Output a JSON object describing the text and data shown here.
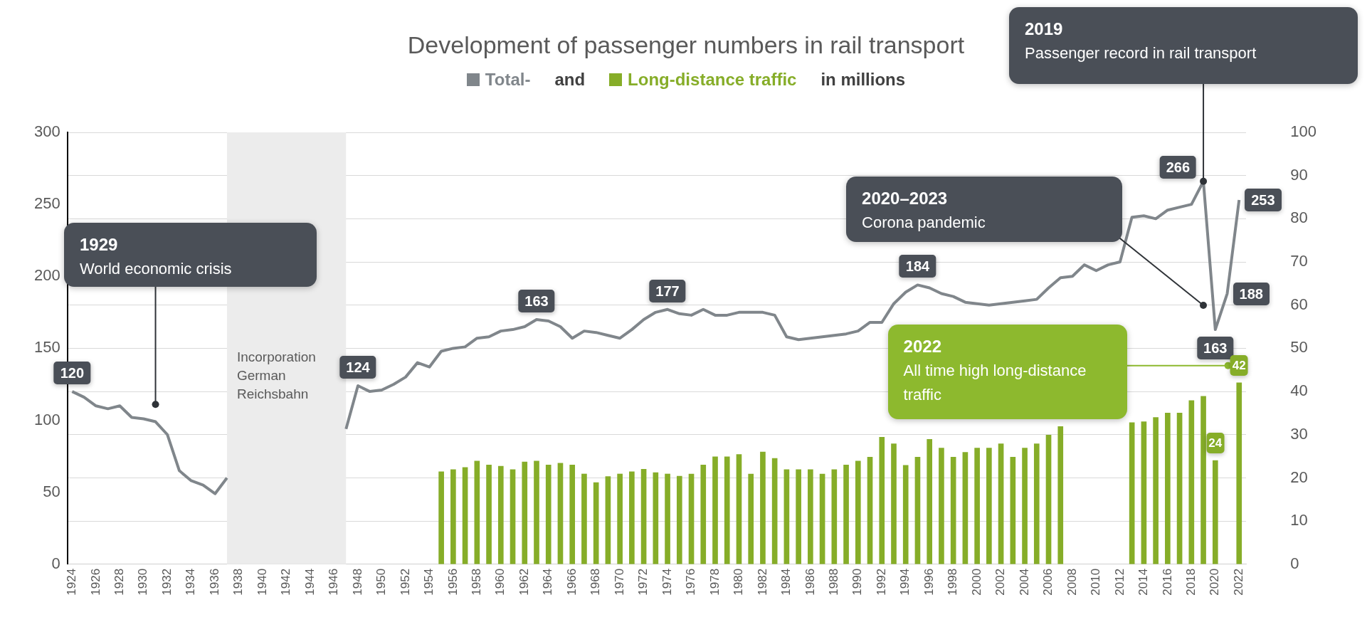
{
  "chart_data": {
    "type": "bar",
    "title": "Development of passenger numbers in rail transport",
    "x": [
      1924,
      1925,
      1926,
      1927,
      1928,
      1929,
      1930,
      1931,
      1932,
      1933,
      1934,
      1935,
      1936,
      1937,
      1938,
      1939,
      1940,
      1941,
      1942,
      1943,
      1944,
      1945,
      1946,
      1947,
      1948,
      1949,
      1950,
      1951,
      1952,
      1953,
      1954,
      1955,
      1956,
      1957,
      1958,
      1959,
      1960,
      1961,
      1962,
      1963,
      1964,
      1965,
      1966,
      1967,
      1968,
      1969,
      1970,
      1971,
      1972,
      1973,
      1974,
      1975,
      1976,
      1977,
      1978,
      1979,
      1980,
      1981,
      1982,
      1983,
      1984,
      1985,
      1986,
      1987,
      1988,
      1989,
      1990,
      1991,
      1992,
      1993,
      1994,
      1995,
      1996,
      1997,
      1998,
      1999,
      2000,
      2001,
      2002,
      2003,
      2004,
      2005,
      2006,
      2007,
      2008,
      2009,
      2010,
      2011,
      2012,
      2013,
      2014,
      2015,
      2016,
      2017,
      2018,
      2019,
      2020,
      2021,
      2022
    ],
    "series": [
      {
        "name": "Total-",
        "type": "line",
        "color": "#80868b",
        "values": [
          120,
          116,
          110,
          108,
          110,
          102,
          101,
          99,
          90,
          65,
          58,
          55,
          49,
          60,
          null,
          null,
          null,
          null,
          null,
          null,
          null,
          null,
          null,
          94,
          124,
          120,
          121,
          125,
          130,
          140,
          137,
          148,
          150,
          151,
          157,
          158,
          162,
          163,
          165,
          170,
          169,
          165,
          157,
          162,
          161,
          159,
          157,
          163,
          170,
          175,
          177,
          174,
          173,
          177,
          173,
          173,
          175,
          175,
          175,
          173,
          158,
          156,
          157,
          158,
          159,
          160,
          162,
          168,
          168,
          181,
          189,
          194,
          192,
          188,
          186,
          182,
          181,
          180,
          181,
          182,
          183,
          184,
          192,
          199,
          200,
          208,
          204,
          208,
          210,
          241,
          242,
          240,
          246,
          248,
          250,
          266,
          163,
          188,
          253
        ],
        "value_labels": [
          "120",
          null,
          null,
          null,
          null,
          null,
          null,
          null,
          null,
          null,
          null,
          null,
          null,
          null,
          null,
          null,
          null,
          null,
          null,
          null,
          null,
          null,
          null,
          null,
          "124",
          null,
          null,
          null,
          null,
          null,
          null,
          null,
          null,
          null,
          null,
          null,
          null,
          null,
          null,
          null,
          null,
          null,
          null,
          null,
          null,
          null,
          null,
          null,
          null,
          null,
          "177",
          null,
          null,
          null,
          null,
          null,
          null,
          null,
          null,
          null,
          null,
          null,
          null,
          null,
          null,
          null,
          null,
          null,
          null,
          null,
          null,
          null,
          null,
          null,
          null,
          null,
          null,
          null,
          null,
          null,
          null,
          null,
          null,
          null,
          null,
          null,
          null,
          null,
          null,
          null,
          null,
          null,
          null,
          null,
          null,
          "266",
          "163",
          "188",
          "253"
        ]
      },
      {
        "name": "Long-distance traffic",
        "axis": "y2",
        "color": "#86ad28",
        "values": [
          null,
          null,
          null,
          null,
          null,
          null,
          null,
          null,
          null,
          null,
          null,
          null,
          null,
          null,
          null,
          null,
          null,
          null,
          null,
          null,
          null,
          null,
          null,
          null,
          null,
          null,
          null,
          null,
          null,
          null,
          null,
          21.4,
          21.9,
          22.4,
          23.9,
          23.0,
          22.7,
          21.9,
          23.7,
          23.9,
          23.0,
          23.4,
          23.0,
          20.9,
          18.9,
          20.3,
          20.9,
          21.4,
          22.0,
          21.2,
          20.9,
          20.4,
          20.9,
          23.0,
          24.9,
          24.9,
          25.4,
          20.9,
          26.0,
          24.5,
          21.9,
          21.9,
          21.9,
          20.9,
          21.9,
          23.0,
          23.9,
          24.8,
          29.4,
          27.9,
          22.9,
          24.8,
          28.9,
          26.9,
          24.8,
          25.9,
          26.9,
          26.9,
          27.9,
          24.8,
          26.9,
          27.9,
          29.9,
          31.9,
          null,
          null,
          null,
          null,
          null,
          32.8,
          33.0,
          34.0,
          35.0,
          35.0,
          37.9,
          38.9,
          24,
          null,
          42
        ],
        "value_labels": [
          null,
          null,
          null,
          null,
          null,
          null,
          null,
          null,
          null,
          null,
          null,
          null,
          null,
          null,
          null,
          null,
          null,
          null,
          null,
          null,
          null,
          null,
          null,
          null,
          null,
          null,
          null,
          null,
          null,
          null,
          null,
          null,
          null,
          null,
          null,
          null,
          null,
          null,
          null,
          null,
          null,
          null,
          null,
          null,
          null,
          null,
          null,
          null,
          null,
          null,
          null,
          null,
          null,
          null,
          null,
          null,
          null,
          null,
          null,
          null,
          null,
          null,
          null,
          null,
          null,
          null,
          null,
          null,
          null,
          null,
          null,
          null,
          null,
          null,
          null,
          null,
          null,
          null,
          null,
          null,
          null,
          null,
          null,
          null,
          null,
          null,
          null,
          null,
          null,
          null,
          null,
          null,
          null,
          null,
          null,
          null,
          "24",
          null,
          "42"
        ]
      }
    ],
    "xlim": [
      1923.6,
      2022.6
    ],
    "xticks": [
      1924,
      1926,
      1928,
      1930,
      1932,
      1934,
      1936,
      1938,
      1940,
      1942,
      1944,
      1946,
      1948,
      1950,
      1952,
      1954,
      1956,
      1958,
      1960,
      1962,
      1964,
      1966,
      1968,
      1970,
      1972,
      1974,
      1976,
      1978,
      1980,
      1982,
      1984,
      1986,
      1988,
      1990,
      1992,
      1994,
      1996,
      1998,
      2000,
      2002,
      2004,
      2006,
      2008,
      2010,
      2012,
      2014,
      2016,
      2018,
      2020,
      2022
    ],
    "ylim": [
      0,
      300
    ],
    "yticks": [
      0,
      50,
      100,
      150,
      200,
      250,
      300
    ],
    "y2lim": [
      0,
      100
    ],
    "y2ticks": [
      0,
      10,
      20,
      30,
      40,
      50,
      60,
      70,
      80,
      90,
      100
    ],
    "grid": "y2",
    "legend": "top",
    "bands": [
      {
        "axis": "x",
        "from": 1937,
        "to": 1947,
        "label": "Incorporation German Reichsbahn",
        "color": "#ececec"
      }
    ],
    "annotations": [
      "and",
      "in millions",
      {
        "text": "163",
        "x": 1963,
        "y": 170
      },
      {
        "text": "184",
        "x": 1995,
        "y": 194
      },
      {
        "text": "1929\nWorld economic crisis",
        "x": 1931,
        "y": 111
      },
      {
        "text": "2019\nPassenger record in rail transport",
        "x": 2019,
        "y": 266
      },
      "2020–2023\nCorona pandemic",
      "2022\nAll time high long-distance traffic"
    ]
  }
}
